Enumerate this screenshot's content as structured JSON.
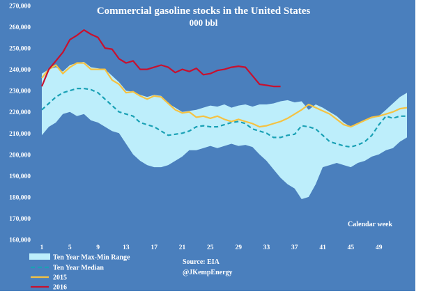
{
  "chart_data": {
    "type": "line",
    "title": "Commercial gasoline stocks in the United States",
    "subtitle": "000 bbl",
    "xlabel": "Calendar week",
    "ylabel": "",
    "xlim": [
      1,
      53
    ],
    "ylim": [
      160000,
      270000
    ],
    "x_ticks": [
      1,
      5,
      9,
      13,
      17,
      21,
      25,
      29,
      33,
      37,
      41,
      45,
      49
    ],
    "y_ticks": [
      160000,
      170000,
      180000,
      190000,
      200000,
      210000,
      220000,
      230000,
      240000,
      250000,
      260000,
      270000
    ],
    "y_tick_labels": [
      "160,000",
      "170,000",
      "180,000",
      "190,000",
      "200,000",
      "210,000",
      "220,000",
      "230,000",
      "240,000",
      "250,000",
      "260,000",
      "270,000"
    ],
    "x_tick_labels": [
      "1",
      "5",
      "9",
      "13",
      "17",
      "21",
      "25",
      "29",
      "33",
      "37",
      "41",
      "45",
      "49"
    ],
    "colors": {
      "background": "#4a7fbd",
      "band": "#bdeefb",
      "median": "#1aa1b5",
      "s2015": "#f5c242",
      "s2016": "#c8102e",
      "text": "#ffffff"
    },
    "band": {
      "name": "Ten Year Max-Min Range",
      "x": [
        1,
        2,
        3,
        4,
        5,
        6,
        7,
        8,
        9,
        10,
        11,
        12,
        13,
        14,
        15,
        16,
        17,
        18,
        19,
        20,
        21,
        22,
        23,
        24,
        25,
        26,
        27,
        28,
        29,
        30,
        31,
        32,
        33,
        34,
        35,
        36,
        37,
        38,
        39,
        40,
        41,
        42,
        43,
        44,
        45,
        46,
        47,
        48,
        49,
        50,
        51,
        52,
        53
      ],
      "max": [
        238000,
        240000,
        241000,
        239000,
        242000,
        243000,
        243500,
        241000,
        240500,
        240000,
        237000,
        234000,
        230000,
        229500,
        228000,
        227000,
        228000,
        227500,
        224000,
        222000,
        220000,
        220500,
        221000,
        222000,
        223000,
        222500,
        223500,
        222000,
        223000,
        223500,
        222500,
        223500,
        223500,
        224000,
        225000,
        225500,
        224500,
        225000,
        221000,
        223500,
        222000,
        220000,
        218000,
        215000,
        213000,
        214500,
        216000,
        217000,
        218000,
        221000,
        224000,
        227000,
        229000
      ],
      "min": [
        209000,
        213000,
        215000,
        219000,
        220000,
        218000,
        219000,
        216000,
        215000,
        213000,
        211000,
        210000,
        205000,
        200000,
        197000,
        195000,
        194000,
        194000,
        195000,
        197000,
        199000,
        202000,
        202000,
        203000,
        204000,
        203000,
        204000,
        205000,
        204000,
        204500,
        203500,
        200000,
        197000,
        193000,
        189000,
        186000,
        184000,
        179000,
        180000,
        186000,
        194000,
        195000,
        196000,
        195000,
        194000,
        196000,
        197000,
        199000,
        200000,
        202000,
        203000,
        206000,
        208000
      ]
    },
    "series": [
      {
        "name": "Ten Year Median",
        "x": [
          1,
          2,
          3,
          4,
          5,
          6,
          7,
          8,
          9,
          10,
          11,
          12,
          13,
          14,
          15,
          16,
          17,
          18,
          19,
          20,
          21,
          22,
          23,
          24,
          25,
          26,
          27,
          28,
          29,
          30,
          31,
          32,
          33,
          34,
          35,
          36,
          37,
          38,
          39,
          40,
          41,
          42,
          43,
          44,
          45,
          46,
          47,
          48,
          49,
          50,
          51,
          52,
          53
        ],
        "values": [
          221000,
          224000,
          227000,
          229000,
          230000,
          231000,
          231000,
          230500,
          229000,
          226000,
          223000,
          220000,
          219000,
          218000,
          215000,
          214000,
          213000,
          211000,
          209000,
          209500,
          210000,
          211000,
          213000,
          213500,
          213000,
          213000,
          214000,
          215000,
          215500,
          214500,
          212000,
          211000,
          210000,
          208000,
          208000,
          209000,
          209500,
          213500,
          213000,
          212000,
          209000,
          206000,
          205000,
          204000,
          203500,
          204500,
          206000,
          209000,
          214000,
          218000,
          217000,
          218000,
          218000
        ]
      },
      {
        "name": "2015",
        "x": [
          1,
          2,
          3,
          4,
          5,
          6,
          7,
          8,
          9,
          10,
          11,
          12,
          13,
          14,
          15,
          16,
          17,
          18,
          19,
          20,
          21,
          22,
          23,
          24,
          25,
          26,
          27,
          28,
          29,
          30,
          31,
          32,
          33,
          34,
          35,
          36,
          37,
          38,
          39,
          40,
          41,
          42,
          43,
          44,
          45,
          46,
          47,
          48,
          49,
          50,
          51,
          52,
          53
        ],
        "values": [
          236000,
          240000,
          242000,
          238000,
          241000,
          243000,
          243000,
          240000,
          240000,
          240000,
          235000,
          233000,
          229000,
          229500,
          227500,
          226000,
          227500,
          227000,
          224000,
          221000,
          219500,
          220000,
          217500,
          218000,
          217000,
          218000,
          216500,
          215500,
          216500,
          215500,
          214500,
          213000,
          213500,
          214500,
          215500,
          217000,
          219000,
          221000,
          223500,
          222000,
          220500,
          219000,
          216500,
          214000,
          213000,
          214500,
          216000,
          217500,
          218000,
          219000,
          220000,
          221500,
          222000
        ]
      },
      {
        "name": "2016",
        "x": [
          1,
          2,
          3,
          4,
          5,
          6,
          7,
          8,
          9,
          10,
          11,
          12,
          13,
          14,
          15,
          16,
          17,
          18,
          19,
          20,
          21,
          22,
          23,
          24,
          25,
          26,
          27,
          28,
          29,
          30,
          31,
          32,
          33,
          34,
          35
        ],
        "values": [
          232000,
          240000,
          244000,
          248000,
          254000,
          256000,
          258500,
          256500,
          255000,
          250000,
          249500,
          245000,
          243000,
          244000,
          240000,
          240000,
          241000,
          242000,
          241000,
          238500,
          240000,
          239000,
          240500,
          237500,
          238000,
          239500,
          240000,
          241000,
          241500,
          241000,
          237000,
          233000,
          232500,
          232000,
          232000
        ]
      }
    ],
    "legend": {
      "position": "bottom-left",
      "entries": [
        {
          "name": "Ten Year Max-Min Range",
          "style": "band"
        },
        {
          "name": "Ten Year Median",
          "style": "dashed"
        },
        {
          "name": "2015",
          "style": "line"
        },
        {
          "name": "2016",
          "style": "line"
        }
      ]
    },
    "annotations": [
      "Source: EIA",
      "@JKempEnergy"
    ],
    "grid": false
  }
}
